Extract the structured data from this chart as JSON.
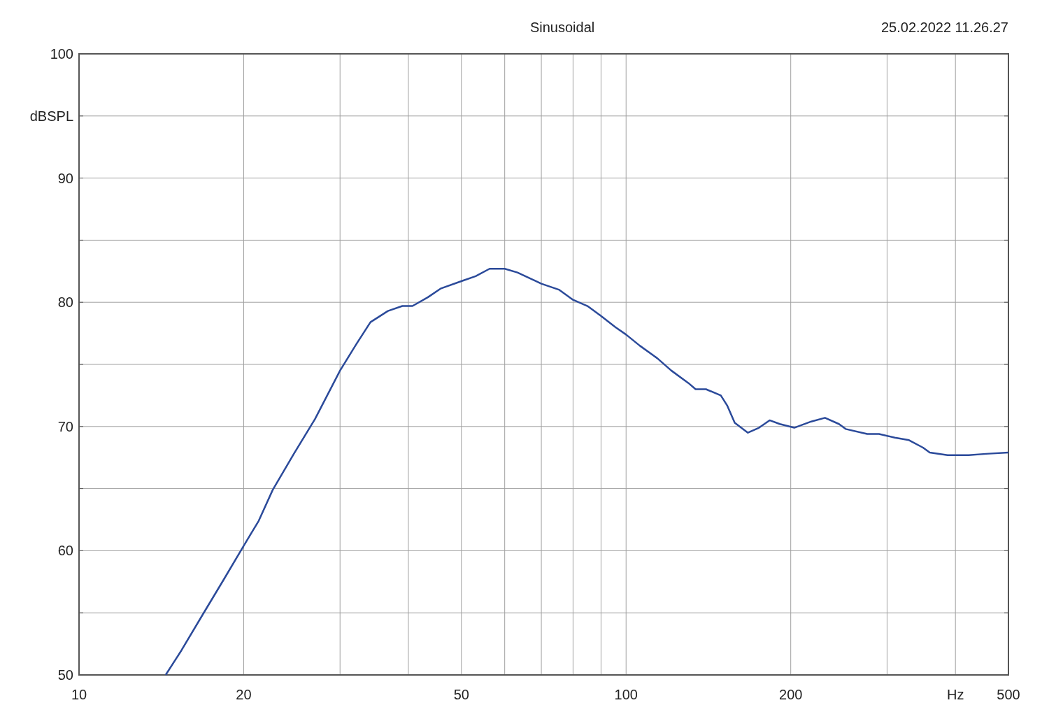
{
  "chart_data": {
    "type": "line",
    "title": "Sinusoidal",
    "annotations": [
      "25.02.2022 11.26.27"
    ],
    "xlabel": "Hz",
    "ylabel": "dBSPL",
    "log": "x",
    "grid": true,
    "marker": "none",
    "line_style": "solid",
    "xlim": [
      10,
      500
    ],
    "ylim": [
      50,
      100
    ],
    "xticks": [
      10,
      20,
      {
        "value": 30,
        "label": null
      },
      {
        "value": 40,
        "label": null
      },
      50,
      {
        "value": 60,
        "label": null
      },
      {
        "value": 70,
        "label": null
      },
      {
        "value": 80,
        "label": null
      },
      {
        "value": 90,
        "label": null
      },
      100,
      200,
      {
        "value": 300,
        "label": null
      },
      {
        "value": 400,
        "label": null
      },
      500
    ],
    "yticks": [
      50,
      {
        "value": 55,
        "label": null
      },
      60,
      {
        "value": 65,
        "label": null
      },
      70,
      {
        "value": 75,
        "label": null
      },
      80,
      {
        "value": 85,
        "label": null
      },
      90,
      {
        "value": 95,
        "label": null
      },
      100
    ],
    "x": [
      14.4,
      15.4,
      16.8,
      18.4,
      20,
      21.3,
      22.6,
      24.7,
      27,
      30,
      32.2,
      34.1,
      36.7,
      39,
      40.7,
      43.4,
      45.8,
      50,
      53.1,
      56.3,
      60,
      63.3,
      70,
      75.5,
      80,
      85,
      90,
      95.6,
      100,
      106,
      114,
      121,
      130,
      134,
      140,
      149,
      153,
      158,
      167,
      175,
      183,
      191,
      203,
      218,
      231,
      245,
      252,
      276,
      290,
      310,
      329,
      349,
      359,
      387,
      423,
      455,
      500
    ],
    "series": [
      {
        "color": "#2b4a9a",
        "values": [
          50,
          52,
          54.8,
          57.7,
          60.4,
          62.4,
          64.9,
          67.8,
          70.6,
          74.5,
          76.7,
          78.4,
          79.3,
          79.7,
          79.7,
          80.4,
          81.1,
          81.7,
          82.1,
          82.7,
          82.7,
          82.4,
          81.5,
          81,
          80.2,
          79.7,
          78.9,
          78,
          77.4,
          76.5,
          75.5,
          74.5,
          73.5,
          73,
          73,
          72.5,
          71.7,
          70.3,
          69.5,
          69.9,
          70.5,
          70.2,
          69.9,
          70.4,
          70.7,
          70.2,
          69.8,
          69.4,
          69.4,
          69.1,
          68.9,
          68.3,
          67.9,
          67.7,
          67.7,
          67.8,
          67.9
        ]
      }
    ]
  }
}
